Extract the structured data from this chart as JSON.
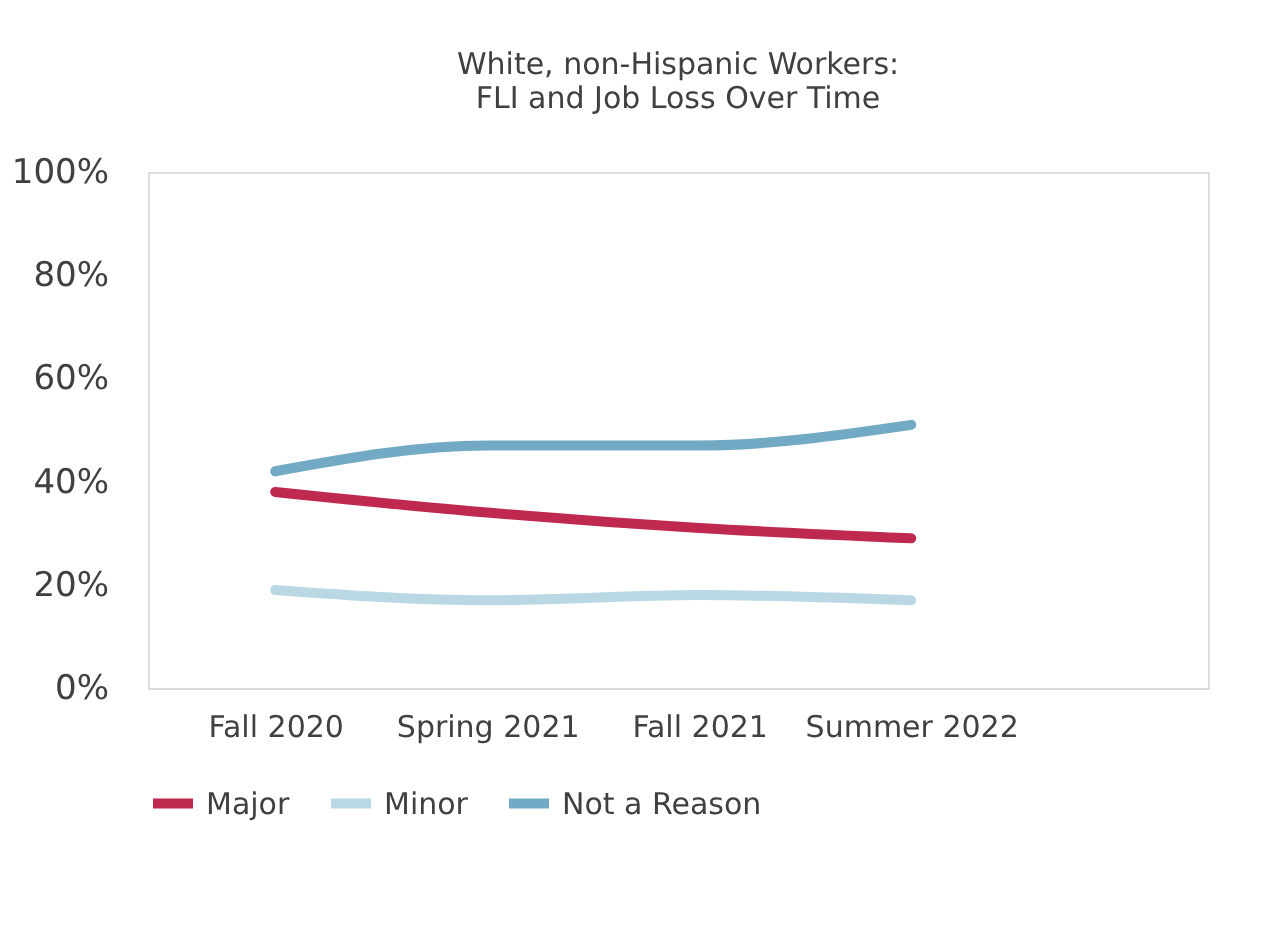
{
  "chart_data": {
    "type": "line",
    "title": [
      "White, non-Hispanic Workers:",
      "FLI and Job Loss Over Time"
    ],
    "categories": [
      "Fall 2020",
      "Spring 2021",
      "Fall 2021",
      "Summer 2022"
    ],
    "series": [
      {
        "name": "Major",
        "color": "#c0294f",
        "values": [
          38,
          34,
          31,
          29
        ]
      },
      {
        "name": "Minor",
        "color": "#b9d8e4",
        "values": [
          19,
          17,
          18,
          17
        ]
      },
      {
        "name": "Not a Reason",
        "color": "#72a9c4",
        "values": [
          42,
          47,
          47,
          51
        ]
      }
    ],
    "ylim": [
      0,
      100
    ],
    "yticks": [
      {
        "value": 0,
        "label": "0%"
      },
      {
        "value": 20,
        "label": "20%"
      },
      {
        "value": 40,
        "label": "40%"
      },
      {
        "value": 60,
        "label": "60%"
      },
      {
        "value": 80,
        "label": "80%"
      },
      {
        "value": 100,
        "label": "100%"
      }
    ],
    "grid": false,
    "legend": "bottom",
    "marker": "none",
    "line_style": "solid"
  }
}
